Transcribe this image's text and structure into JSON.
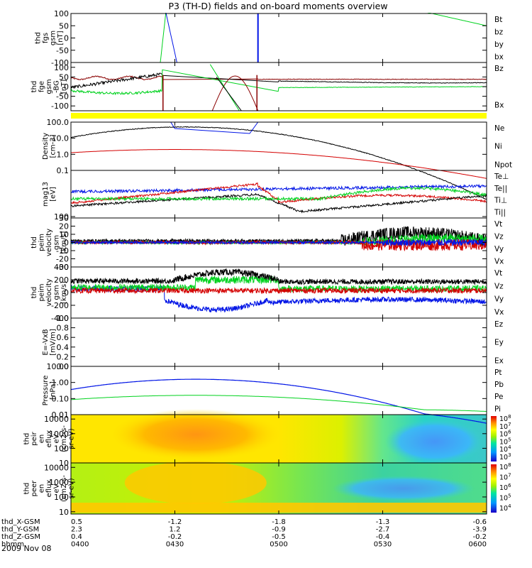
{
  "title": "P3 (TH-D) fields and on-board moments overview",
  "date_label": "2009 Nov 08",
  "colors": {
    "black": "#000000",
    "red": "#d40000",
    "green": "#00d21e",
    "blue": "#0014e6",
    "dark_red": "#8a0000",
    "yellow": "#ffff00"
  },
  "chart_data": [
    {
      "type": "line",
      "id": "fgs",
      "ylabel": [
        "thd",
        "fgs",
        "gsm",
        "[nT]"
      ],
      "ylim": [
        -100,
        100
      ],
      "ticks": [
        "100",
        "50",
        "0",
        "-50",
        "-100"
      ],
      "tick_values": [
        100,
        50,
        0,
        -50,
        -100
      ],
      "legend": [
        {
          "label": "Bt",
          "color": "#000000"
        },
        {
          "label": "bz",
          "color": "#d40000"
        },
        {
          "label": "by",
          "color": "#00d21e"
        },
        {
          "label": "bx",
          "color": "#0014e6"
        }
      ]
    },
    {
      "type": "line",
      "id": "fge",
      "ylabel": [
        "thd",
        "fge",
        "gsm",
        "-BG",
        "[nT]"
      ],
      "ylim": [
        -125,
        125
      ],
      "ticks": [
        "100",
        "50",
        "0",
        "-50",
        "-100"
      ],
      "tick_values": [
        100,
        50,
        0,
        -50,
        -100
      ],
      "legend": [
        {
          "label": "Bz",
          "color": "#d40000"
        },
        {
          "label": "Bx",
          "color": "#000000"
        }
      ]
    },
    {
      "type": "line",
      "id": "density",
      "scale": "log",
      "ylabel": [
        "Density",
        "[cm-3]"
      ],
      "ylim": [
        0.1,
        100
      ],
      "ticks": [
        "100.0",
        "10.0",
        "1.0",
        "0.1"
      ],
      "tick_values": [
        100,
        10,
        1,
        0.1
      ],
      "legend": [
        {
          "label": "Ne",
          "color": "#d40000"
        },
        {
          "label": "Ni",
          "color": "#000000"
        },
        {
          "label": "Npot",
          "color": "#0014e6"
        }
      ]
    },
    {
      "type": "line",
      "id": "temp",
      "scale": "log",
      "ylabel": [
        "mag13",
        "[eV]"
      ],
      "ticks": [
        "100"
      ],
      "tick_values": [
        100
      ],
      "legend": [
        {
          "label": "Te⊥",
          "color": "#d40000"
        },
        {
          "label": "Te||",
          "color": "#000000"
        },
        {
          "label": "Ti⊥",
          "color": "#0014e6"
        },
        {
          "label": "Ti||",
          "color": "#00d21e"
        }
      ]
    },
    {
      "type": "line",
      "id": "peem_vel",
      "ylabel": [
        "thd",
        "peim",
        "velocity",
        "gsm",
        "[km/s]"
      ],
      "ylim": [
        -30,
        30
      ],
      "ticks": [
        "30",
        "20",
        "10",
        "0",
        "-10",
        "-20",
        "-30"
      ],
      "tick_values": [
        30,
        20,
        10,
        0,
        -10,
        -20,
        -30
      ],
      "legend": [
        {
          "label": "Vt",
          "color": "#000000"
        },
        {
          "label": "Vz",
          "color": "#d40000"
        },
        {
          "label": "Vy",
          "color": "#00d21e"
        },
        {
          "label": "Vx",
          "color": "#0014e6"
        }
      ]
    },
    {
      "type": "line",
      "id": "peim_vel",
      "ylabel": [
        "thd",
        "peim",
        "velocity",
        "gsm",
        "[km/s]"
      ],
      "ylim": [
        -400,
        400
      ],
      "ticks": [
        "400",
        "200",
        "0",
        "-200",
        "-400"
      ],
      "tick_values": [
        400,
        200,
        0,
        -200,
        -400
      ],
      "legend": [
        {
          "label": "Vt",
          "color": "#000000"
        },
        {
          "label": "Vz",
          "color": "#d40000"
        },
        {
          "label": "Vy",
          "color": "#00d21e"
        },
        {
          "label": "Vx",
          "color": "#0014e6"
        }
      ]
    },
    {
      "type": "line",
      "id": "efield",
      "ylabel": [
        "E=-VxB",
        "[mV/m]"
      ],
      "ylim": [
        0,
        1
      ],
      "ticks": [
        "1.0",
        "0.8",
        "0.6",
        "0.4",
        "0.2",
        "0.0"
      ],
      "tick_values": [
        1,
        0.8,
        0.6,
        0.4,
        0.2,
        0
      ],
      "legend": [
        {
          "label": "Ez",
          "color": "#d40000"
        },
        {
          "label": "Ey",
          "color": "#00d21e"
        },
        {
          "label": "Ex",
          "color": "#0014e6"
        }
      ]
    },
    {
      "type": "line",
      "id": "pressure",
      "scale": "log",
      "ylabel": [
        "Pressure",
        "[nPa]"
      ],
      "ylim": [
        0.01,
        10
      ],
      "ticks": [
        "10.00",
        "1.00",
        "0.10",
        "0.01"
      ],
      "tick_values": [
        10,
        1,
        0.1,
        0.01
      ],
      "legend": [
        {
          "label": "Pt",
          "color": "#000000"
        },
        {
          "label": "Pb",
          "color": "#d40000"
        },
        {
          "label": "Pe",
          "color": "#00d21e"
        },
        {
          "label": "Pi",
          "color": "#0014e6"
        }
      ]
    },
    {
      "type": "heatmap",
      "id": "peir",
      "scale": "log",
      "ylabel": [
        "thd",
        "peir",
        "en",
        "eflux",
        "eV",
        "(cm2-s-",
        "sr-eV)"
      ],
      "ylim": [
        10,
        20000
      ],
      "ticks": [
        "10000",
        "1000",
        "100",
        "10"
      ],
      "tick_values": [
        10000,
        1000,
        100,
        10
      ],
      "colorbar": [
        "10",
        "10",
        "10",
        "10",
        "10",
        "10"
      ],
      "colorbar_exp": [
        "8",
        "7",
        "6",
        "5",
        "4",
        "3"
      ]
    },
    {
      "type": "heatmap",
      "id": "peer",
      "scale": "log",
      "ylabel": [
        "thd",
        "peer",
        "en",
        "eflux",
        "eV",
        "(cm2-s-",
        "sr-eV)"
      ],
      "ylim": [
        7,
        20000
      ],
      "ticks": [
        "10000",
        "1000",
        "100",
        "10"
      ],
      "tick_values": [
        10000,
        1000,
        100,
        10
      ],
      "colorbar": [
        "10",
        "10",
        "10",
        "10",
        "10"
      ],
      "colorbar_exp": [
        "8",
        "7",
        "6",
        "5",
        "4"
      ]
    }
  ],
  "xaxis": {
    "rows": [
      {
        "label": "thd_X-GSM",
        "values": [
          "0.5",
          "-1.2",
          "-1.8",
          "-1.3",
          "-0.6"
        ]
      },
      {
        "label": "thd_Y-GSM",
        "values": [
          "2.3",
          "1.2",
          "-0.9",
          "-2.7",
          "-3.9"
        ]
      },
      {
        "label": "thd_Z-GSM",
        "values": [
          "0.4",
          "-0.2",
          "-0.5",
          "-0.4",
          "-0.2"
        ]
      },
      {
        "label": "hhmm",
        "values": [
          "0400",
          "0430",
          "0500",
          "0530",
          "0600"
        ]
      }
    ],
    "time_hours": [
      4.0,
      4.5,
      5.0,
      5.5,
      6.0
    ],
    "xlim_hours": [
      4.0,
      6.0
    ]
  }
}
